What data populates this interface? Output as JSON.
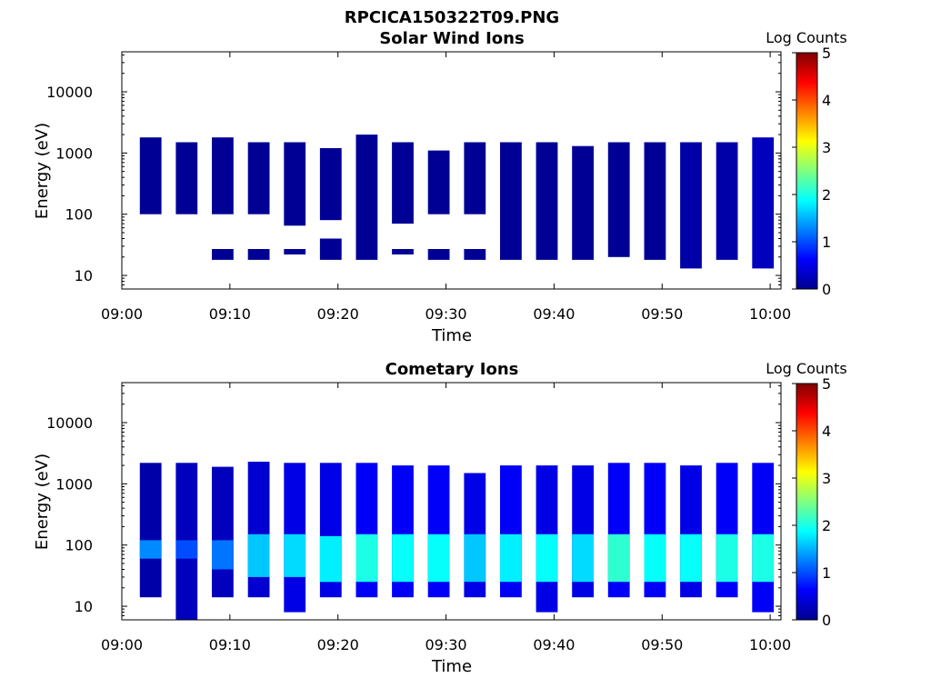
{
  "figure": {
    "title": "RPCICA150322T09.PNG"
  },
  "chart_data": [
    {
      "type": "heatmap",
      "title": "Solar Wind Ions",
      "xlabel": "Time",
      "ylabel": "Energy (eV)",
      "x_ticks": [
        "09:00",
        "09:10",
        "09:20",
        "09:30",
        "09:40",
        "09:50",
        "10:00"
      ],
      "xlim": [
        "09:00",
        "10:01"
      ],
      "y_scale": "log",
      "y_ticks": [
        "10",
        "100",
        "1000",
        "10000"
      ],
      "ylim": [
        6,
        45000
      ],
      "colorbar": {
        "label": "Log Counts",
        "range": [
          0,
          5
        ],
        "ticks": [
          "0",
          "1",
          "2",
          "3",
          "4",
          "5"
        ],
        "colormap": "jet"
      },
      "columns": [
        {
          "t": "09:02:40",
          "blocks": [
            [
              100,
              1800,
              0.1
            ]
          ]
        },
        {
          "t": "09:06:00",
          "blocks": [
            [
              100,
              1500,
              0.1
            ]
          ]
        },
        {
          "t": "09:09:20",
          "blocks": [
            [
              100,
              1800,
              0.1
            ],
            [
              18,
              27,
              0.1
            ]
          ]
        },
        {
          "t": "09:12:40",
          "blocks": [
            [
              100,
              1500,
              0.1
            ],
            [
              18,
              27,
              0.1
            ]
          ]
        },
        {
          "t": "09:16:00",
          "blocks": [
            [
              65,
              1500,
              0.1
            ],
            [
              22,
              27,
              0.1
            ]
          ]
        },
        {
          "t": "09:19:20",
          "blocks": [
            [
              80,
              1200,
              0.1
            ],
            [
              18,
              40,
              0.1
            ]
          ]
        },
        {
          "t": "09:22:40",
          "blocks": [
            [
              18,
              2000,
              0.1
            ]
          ]
        },
        {
          "t": "09:26:00",
          "blocks": [
            [
              70,
              1500,
              0.1
            ],
            [
              22,
              27,
              0.1
            ]
          ]
        },
        {
          "t": "09:29:20",
          "blocks": [
            [
              100,
              1100,
              0.1
            ],
            [
              18,
              27,
              0.1
            ]
          ]
        },
        {
          "t": "09:32:40",
          "blocks": [
            [
              100,
              1500,
              0.1
            ],
            [
              18,
              27,
              0.1
            ]
          ]
        },
        {
          "t": "09:36:00",
          "blocks": [
            [
              18,
              1500,
              0.1
            ]
          ]
        },
        {
          "t": "09:39:20",
          "blocks": [
            [
              18,
              1500,
              0.1
            ]
          ]
        },
        {
          "t": "09:42:40",
          "blocks": [
            [
              18,
              1300,
              0.1
            ]
          ]
        },
        {
          "t": "09:46:00",
          "blocks": [
            [
              20,
              1500,
              0.1
            ]
          ]
        },
        {
          "t": "09:49:20",
          "blocks": [
            [
              18,
              1500,
              0.1
            ]
          ]
        },
        {
          "t": "09:52:40",
          "blocks": [
            [
              13,
              1500,
              0.2
            ]
          ]
        },
        {
          "t": "09:56:00",
          "blocks": [
            [
              18,
              1500,
              0.2
            ]
          ]
        },
        {
          "t": "09:59:20",
          "blocks": [
            [
              13,
              1800,
              0.3
            ]
          ]
        }
      ]
    },
    {
      "type": "heatmap",
      "title": "Cometary Ions",
      "xlabel": "Time",
      "ylabel": "Energy (eV)",
      "x_ticks": [
        "09:00",
        "09:10",
        "09:20",
        "09:30",
        "09:40",
        "09:50",
        "10:00"
      ],
      "xlim": [
        "09:00",
        "10:01"
      ],
      "y_scale": "log",
      "y_ticks": [
        "10",
        "100",
        "1000",
        "10000"
      ],
      "ylim": [
        6,
        45000
      ],
      "colorbar": {
        "label": "Log Counts",
        "range": [
          0,
          5
        ],
        "ticks": [
          "0",
          "1",
          "2",
          "3",
          "4",
          "5"
        ],
        "colormap": "jet"
      },
      "columns": [
        {
          "t": "09:02:40",
          "blocks": [
            [
              14,
              2200,
              0.2
            ],
            [
              60,
              120,
              1.3
            ]
          ]
        },
        {
          "t": "09:06:00",
          "blocks": [
            [
              6,
              2200,
              0.3
            ],
            [
              60,
              120,
              1.0
            ]
          ]
        },
        {
          "t": "09:09:20",
          "blocks": [
            [
              14,
              1900,
              0.3
            ],
            [
              40,
              120,
              1.2
            ]
          ]
        },
        {
          "t": "09:12:40",
          "blocks": [
            [
              14,
              2300,
              0.4
            ],
            [
              30,
              150,
              1.6
            ]
          ]
        },
        {
          "t": "09:16:00",
          "blocks": [
            [
              8,
              2200,
              0.5
            ],
            [
              30,
              150,
              1.7
            ]
          ]
        },
        {
          "t": "09:19:20",
          "blocks": [
            [
              14,
              2200,
              0.5
            ],
            [
              25,
              140,
              1.8
            ]
          ]
        },
        {
          "t": "09:22:40",
          "blocks": [
            [
              14,
              2200,
              0.6
            ],
            [
              25,
              150,
              2.0
            ]
          ]
        },
        {
          "t": "09:26:00",
          "blocks": [
            [
              14,
              2000,
              0.6
            ],
            [
              25,
              150,
              1.9
            ]
          ]
        },
        {
          "t": "09:29:20",
          "blocks": [
            [
              14,
              2000,
              0.6
            ],
            [
              25,
              150,
              1.9
            ]
          ]
        },
        {
          "t": "09:32:40",
          "blocks": [
            [
              14,
              1500,
              0.5
            ],
            [
              25,
              150,
              1.6
            ]
          ]
        },
        {
          "t": "09:36:00",
          "blocks": [
            [
              14,
              2000,
              0.6
            ],
            [
              25,
              150,
              1.8
            ]
          ]
        },
        {
          "t": "09:39:20",
          "blocks": [
            [
              8,
              2000,
              0.5
            ],
            [
              25,
              150,
              1.9
            ]
          ]
        },
        {
          "t": "09:42:40",
          "blocks": [
            [
              14,
              2000,
              0.5
            ],
            [
              25,
              150,
              1.7
            ]
          ]
        },
        {
          "t": "09:46:00",
          "blocks": [
            [
              14,
              2200,
              0.6
            ],
            [
              25,
              150,
              2.1
            ]
          ]
        },
        {
          "t": "09:49:20",
          "blocks": [
            [
              14,
              2200,
              0.6
            ],
            [
              25,
              150,
              1.9
            ]
          ]
        },
        {
          "t": "09:52:40",
          "blocks": [
            [
              14,
              2000,
              0.5
            ],
            [
              25,
              150,
              1.9
            ]
          ]
        },
        {
          "t": "09:56:00",
          "blocks": [
            [
              14,
              2200,
              0.6
            ],
            [
              25,
              150,
              2.0
            ]
          ]
        },
        {
          "t": "09:59:20",
          "blocks": [
            [
              8,
              2200,
              0.6
            ],
            [
              25,
              150,
              2.0
            ]
          ]
        }
      ]
    }
  ]
}
